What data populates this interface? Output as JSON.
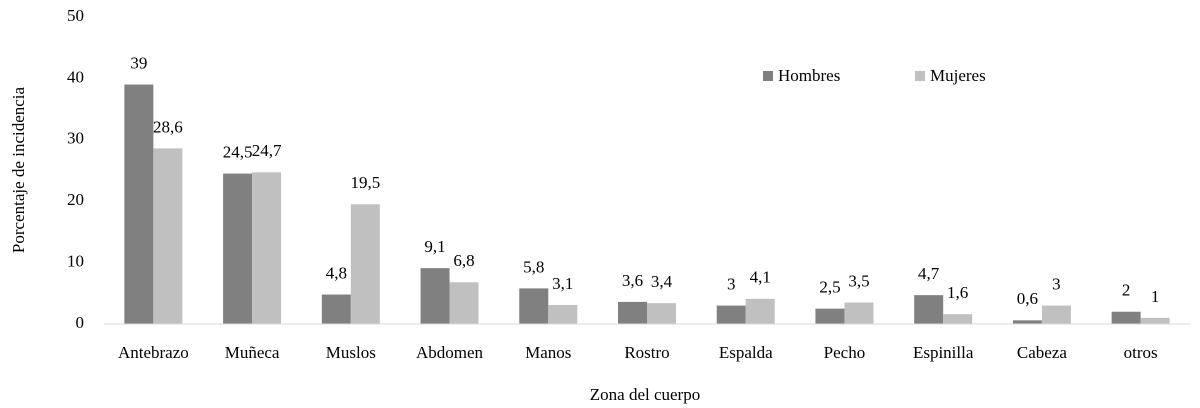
{
  "chart_data": {
    "type": "bar",
    "y_label": "Porcentaje de incidencia",
    "x_label": "Zona del cuerpo",
    "categories": [
      "Antebrazo",
      "Muñeca",
      "Muslos",
      "Abdomen",
      "Manos",
      "Rostro",
      "Espalda",
      "Pecho",
      "Espinilla",
      "Cabeza",
      "otros"
    ],
    "series": [
      {
        "name": "Hombres",
        "color": "#808080",
        "values": [
          39,
          24.5,
          4.8,
          9.1,
          5.8,
          3.6,
          3,
          2.5,
          4.7,
          0.6,
          2
        ],
        "value_labels": [
          "39",
          "24,5",
          "4,8",
          "9,1",
          "5,8",
          "3,6",
          "3",
          "2,5",
          "4,7",
          "0,6",
          "2"
        ]
      },
      {
        "name": "Mujeres",
        "color": "#c0c0c0",
        "values": [
          28.6,
          24.7,
          19.5,
          6.8,
          3.1,
          3.4,
          4.1,
          3.5,
          1.6,
          3,
          1
        ],
        "value_labels": [
          "28,6",
          "24,7",
          "19,5",
          "6,8",
          "3,1",
          "3,4",
          "4,1",
          "3,5",
          "1,6",
          "3",
          "1"
        ]
      }
    ],
    "ylim": [
      0,
      50
    ],
    "yticks": [
      0,
      10,
      20,
      30,
      40,
      50
    ],
    "grid": false,
    "legend": "upper right"
  }
}
